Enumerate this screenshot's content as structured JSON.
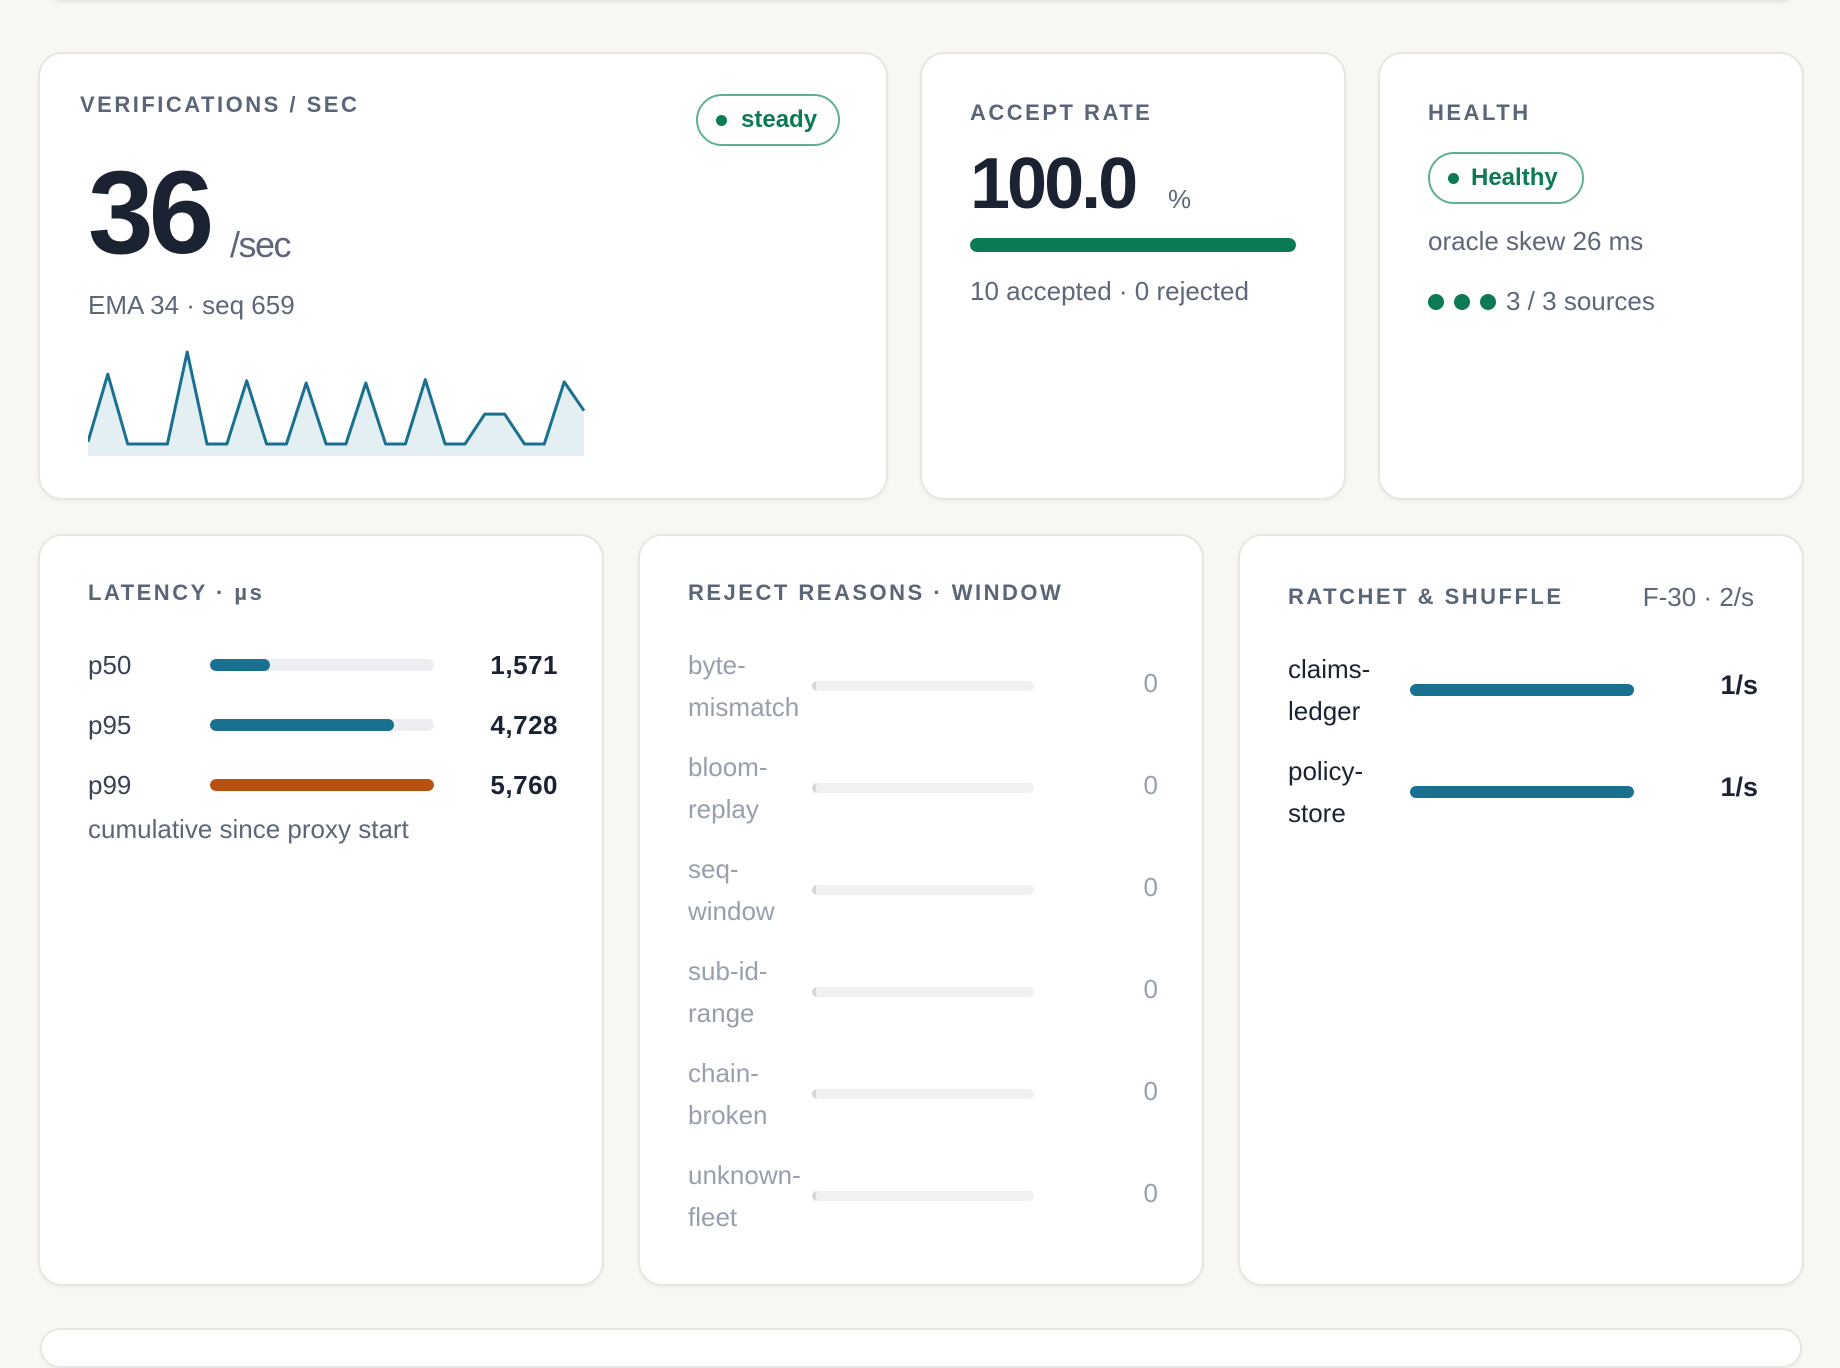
{
  "verifications": {
    "title": "VERIFICATIONS / SEC",
    "status": "steady",
    "value": "36",
    "unit": "/sec",
    "subline": "EMA 34 · seq 659",
    "sparkline": [
      2,
      63,
      0,
      0,
      0,
      83,
      0,
      0,
      57,
      0,
      0,
      55,
      0,
      0,
      55,
      0,
      0,
      58,
      0,
      0,
      27,
      27,
      0,
      0,
      56,
      30
    ]
  },
  "accept": {
    "title": "ACCEPT RATE",
    "value": "100.0",
    "unit": "%",
    "progress": 1.0,
    "subline": "10 accepted · 0 rejected"
  },
  "health": {
    "title": "HEALTH",
    "status": "Healthy",
    "skew": "oracle skew 26 ms",
    "sources_text": "3 / 3 sources",
    "sources_ok": 3
  },
  "latency": {
    "title": "LATENCY · µs",
    "rows": [
      {
        "label": "p50",
        "value": "1,571",
        "fraction": 0.27,
        "color": "#1a7090"
      },
      {
        "label": "p95",
        "value": "4,728",
        "fraction": 0.82,
        "color": "#1a7090"
      },
      {
        "label": "p99",
        "value": "5,760",
        "fraction": 1.0,
        "color": "#b8500f"
      }
    ],
    "note": "cumulative since proxy start"
  },
  "reject": {
    "title": "REJECT REASONS · WINDOW",
    "rows": [
      {
        "label": "byte-mismatch",
        "value": "0"
      },
      {
        "label": "bloom-replay",
        "value": "0"
      },
      {
        "label": "seq-window",
        "value": "0"
      },
      {
        "label": "sub-id-range",
        "value": "0"
      },
      {
        "label": "chain-broken",
        "value": "0"
      },
      {
        "label": "unknown-fleet",
        "value": "0"
      }
    ]
  },
  "ratchet": {
    "title": "RATCHET & SHUFFLE",
    "meta": "F-30 · 2/s",
    "rows": [
      {
        "label": "claims-ledger",
        "value": "1/s",
        "fraction": 1.0
      },
      {
        "label": "policy-store",
        "value": "1/s",
        "fraction": 1.0
      }
    ]
  },
  "colors": {
    "accent_green": "#0c7a55",
    "accent_teal": "#1a7090",
    "accent_orange": "#b8500f",
    "background": "#f8f7f4"
  }
}
